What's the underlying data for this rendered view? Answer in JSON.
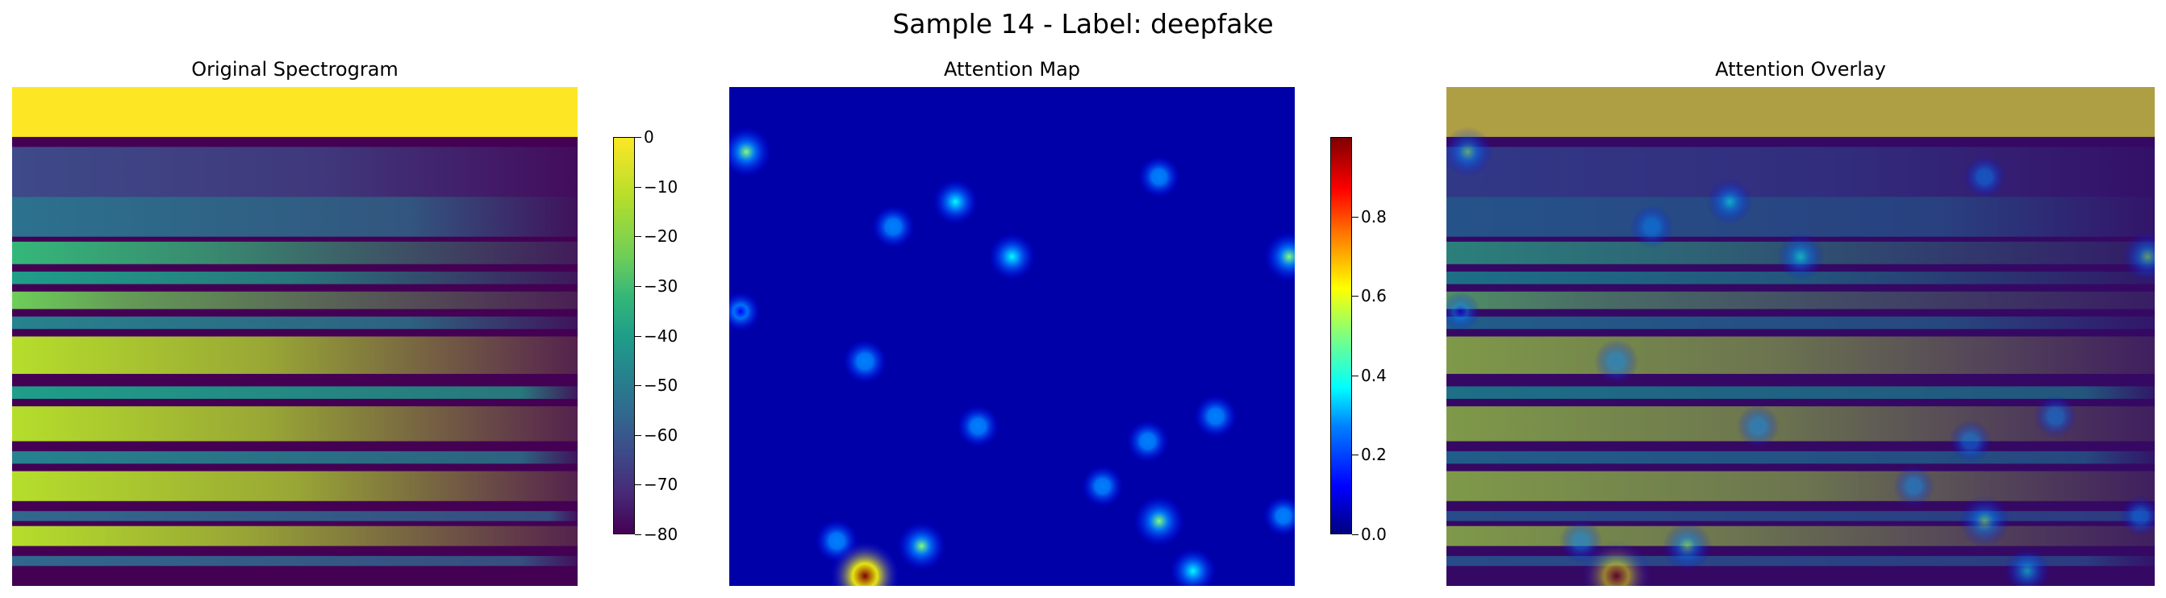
{
  "chart_data": [
    {
      "type": "heatmap",
      "title": "Original Spectrogram",
      "colormap": "viridis",
      "colorbar": {
        "range": [
          -80,
          0
        ],
        "ticks": [
          0,
          -10,
          -20,
          -30,
          -40,
          -50,
          -60,
          -70,
          -80
        ]
      },
      "description_values": {
        "top_band_db": 0,
        "background_db": -80
      }
    },
    {
      "type": "heatmap",
      "title": "Attention Map",
      "colormap": "jet",
      "colorbar": {
        "range": [
          0,
          1
        ],
        "ticks": [
          0.0,
          0.2,
          0.4,
          0.6,
          0.8
        ]
      },
      "hotspots": [
        {
          "x": 0.03,
          "y": 0.13,
          "value": 0.42
        },
        {
          "x": 0.4,
          "y": 0.23,
          "value": 0.28
        },
        {
          "x": 0.5,
          "y": 0.34,
          "value": 0.33
        },
        {
          "x": 0.99,
          "y": 0.34,
          "value": 0.42
        },
        {
          "x": 0.29,
          "y": 0.28,
          "value": 0.22
        },
        {
          "x": 0.76,
          "y": 0.18,
          "value": 0.18
        },
        {
          "x": 0.24,
          "y": 0.55,
          "value": 0.25
        },
        {
          "x": 0.44,
          "y": 0.68,
          "value": 0.2
        },
        {
          "x": 0.74,
          "y": 0.71,
          "value": 0.2
        },
        {
          "x": 0.86,
          "y": 0.66,
          "value": 0.22
        },
        {
          "x": 0.66,
          "y": 0.8,
          "value": 0.18
        },
        {
          "x": 0.76,
          "y": 0.87,
          "value": 0.45
        },
        {
          "x": 0.34,
          "y": 0.92,
          "value": 0.38
        },
        {
          "x": 0.19,
          "y": 0.91,
          "value": 0.22
        },
        {
          "x": 0.24,
          "y": 0.98,
          "value": 0.99
        },
        {
          "x": 0.82,
          "y": 0.97,
          "value": 0.3
        },
        {
          "x": 0.98,
          "y": 0.86,
          "value": 0.15
        },
        {
          "x": 0.02,
          "y": 0.45,
          "value": 0.12
        }
      ]
    },
    {
      "type": "heatmap",
      "title": "Attention Overlay"
    }
  ],
  "figure": {
    "suptitle": "Sample 14 - Label: deepfake"
  }
}
